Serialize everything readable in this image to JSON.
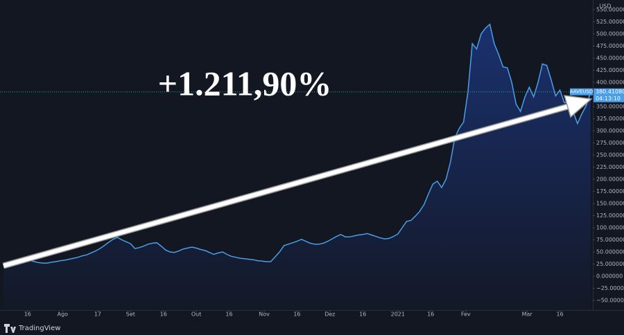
{
  "chart_data": {
    "type": "area",
    "series": [
      {
        "name": "AAVEUSD",
        "color": "#4a9fe8",
        "values": [
          18,
          20,
          22,
          25,
          28,
          32,
          33,
          30,
          28,
          27,
          27,
          29,
          30,
          32,
          33,
          35,
          37,
          39,
          42,
          44,
          48,
          52,
          57,
          63,
          70,
          76,
          80,
          75,
          71,
          67,
          57,
          59,
          62,
          66,
          68,
          69,
          62,
          54,
          50,
          49,
          52,
          56,
          58,
          60,
          58,
          55,
          53,
          49,
          45,
          48,
          50,
          45,
          41,
          39,
          37,
          36,
          35,
          34,
          32,
          31,
          30,
          30,
          40,
          50,
          63,
          66,
          69,
          72,
          76,
          72,
          68,
          66,
          66,
          68,
          72,
          77,
          82,
          86,
          81,
          81,
          83,
          85,
          86,
          88,
          85,
          82,
          79,
          77,
          78,
          82,
          87,
          100,
          113,
          115,
          124,
          134,
          148,
          170,
          190,
          196,
          183,
          200,
          235,
          285,
          305,
          318,
          380,
          480,
          469,
          500,
          512,
          520,
          480,
          458,
          432,
          430,
          400,
          355,
          340,
          370,
          390,
          370,
          400,
          438,
          435,
          405,
          372,
          384,
          358,
          360,
          340,
          315,
          335,
          352,
          380.410803
        ]
      }
    ],
    "xlim": [
      -0.8,
      134.5
    ],
    "xticks": [
      {
        "value": 5.5,
        "label": "16"
      },
      {
        "value": 13.5,
        "label": "Ago"
      },
      {
        "value": 21.5,
        "label": "17"
      },
      {
        "value": 29,
        "label": "Set"
      },
      {
        "value": 36.5,
        "label": "16"
      },
      {
        "value": 44,
        "label": "Out"
      },
      {
        "value": 51.5,
        "label": "16"
      },
      {
        "value": 59.5,
        "label": "Nov"
      },
      {
        "value": 67,
        "label": "16"
      },
      {
        "value": 74.5,
        "label": "Dez"
      },
      {
        "value": 82,
        "label": "16"
      },
      {
        "value": 90,
        "label": "2021"
      },
      {
        "value": 97.5,
        "label": "16"
      },
      {
        "value": 105.5,
        "label": "Fev"
      },
      {
        "value": 119.5,
        "label": "Mar"
      },
      {
        "value": 127,
        "label": "16"
      }
    ],
    "ylim": [
      -70,
      570
    ],
    "yticks": [
      {
        "value": -50,
        "label": "−50.000000"
      },
      {
        "value": -25,
        "label": "−25.000000"
      },
      {
        "value": 0,
        "label": "0.000000"
      },
      {
        "value": 25,
        "label": "25.000000"
      },
      {
        "value": 50,
        "label": "50.000000"
      },
      {
        "value": 75,
        "label": "75.000000"
      },
      {
        "value": 100,
        "label": "100.000000"
      },
      {
        "value": 125,
        "label": "125.000000"
      },
      {
        "value": 150,
        "label": "150.000000"
      },
      {
        "value": 175,
        "label": "175.000000"
      },
      {
        "value": 200,
        "label": "200.000000"
      },
      {
        "value": 225,
        "label": "225.000000"
      },
      {
        "value": 250,
        "label": "250.000000"
      },
      {
        "value": 275,
        "label": "275.000000"
      },
      {
        "value": 300,
        "label": "300.000000"
      },
      {
        "value": 325,
        "label": "325.000000"
      },
      {
        "value": 350,
        "label": "350.000000"
      },
      {
        "value": 375,
        "label": "375.000000"
      },
      {
        "value": 400,
        "label": "400.000000"
      },
      {
        "value": 425,
        "label": "425.000000"
      },
      {
        "value": 450,
        "label": "450.000000"
      },
      {
        "value": 475,
        "label": "475.000000"
      },
      {
        "value": 500,
        "label": "500.000000"
      },
      {
        "value": 525,
        "label": "525.000000"
      },
      {
        "value": 550,
        "label": "550.000000"
      }
    ],
    "grid": false,
    "y_unit": "USD",
    "annotation": "+1.211,90%",
    "countdown": "04:13:10",
    "brand": "TradingView"
  }
}
